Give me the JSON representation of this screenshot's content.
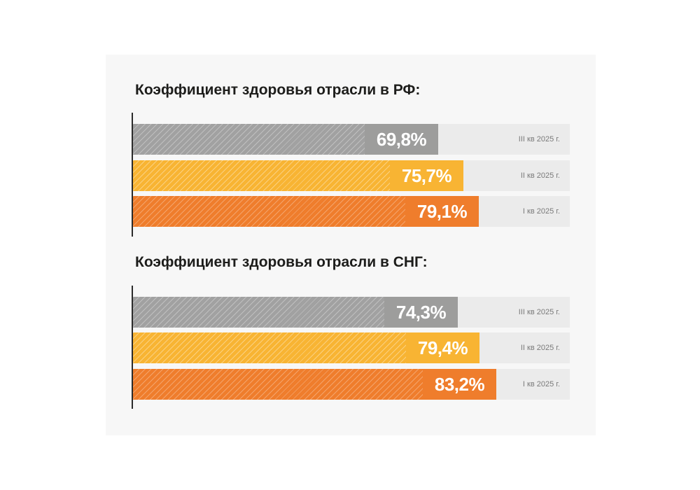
{
  "chart_data": [
    {
      "type": "bar",
      "orientation": "horizontal",
      "title": "Коэффициент здоровья отрасли в РФ:",
      "xlim": [
        0,
        100
      ],
      "grid": false,
      "categories": [
        "III кв 2025 г.",
        "II кв 2025 г.",
        "I кв 2025 г."
      ],
      "values": [
        69.8,
        75.7,
        79.1
      ],
      "value_labels": [
        "69,8%",
        "75,7%",
        "79,1%"
      ],
      "colors": [
        "#9d9d9c",
        "#f8b433",
        "#ef7d2c"
      ]
    },
    {
      "type": "bar",
      "orientation": "horizontal",
      "title": "Коэффициент здоровья отрасли в СНГ:",
      "xlim": [
        0,
        100
      ],
      "grid": false,
      "categories": [
        "III кв 2025 г.",
        "II кв 2025 г.",
        "I кв 2025 г."
      ],
      "values": [
        74.3,
        79.4,
        83.2
      ],
      "value_labels": [
        "74,3%",
        "79,4%",
        "83,2%"
      ],
      "colors": [
        "#9d9d9c",
        "#f8b433",
        "#ef7d2c"
      ]
    }
  ]
}
